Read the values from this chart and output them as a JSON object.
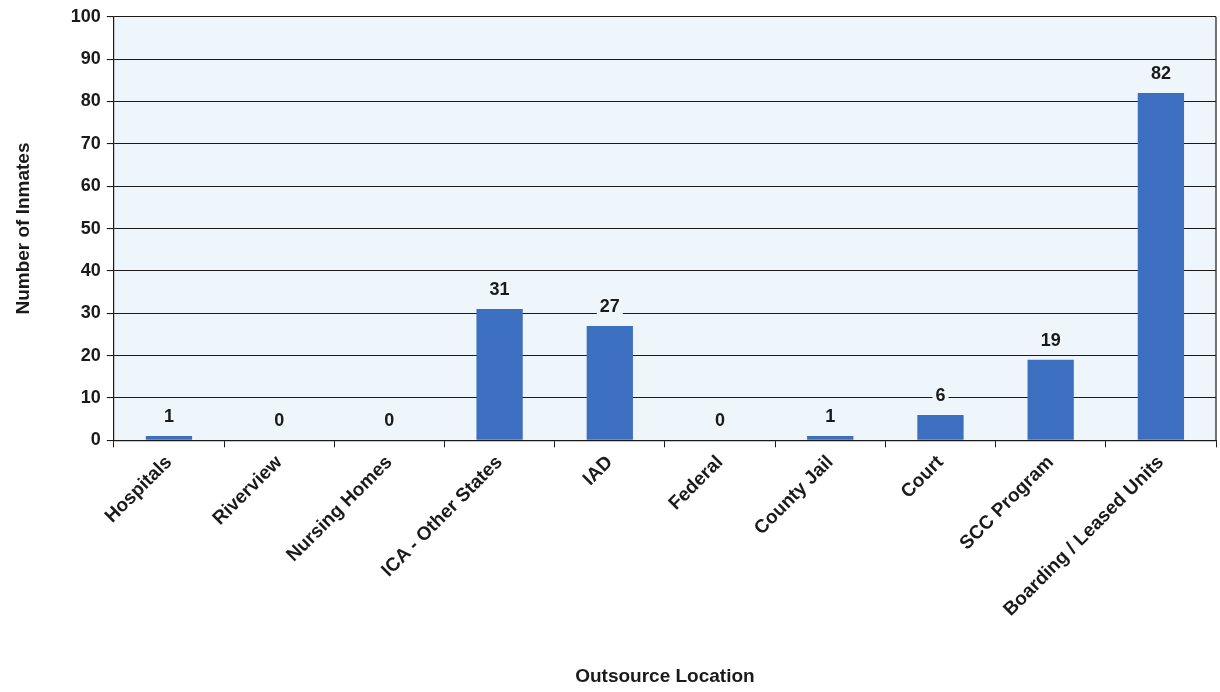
{
  "chart_data": {
    "type": "bar",
    "xlabel": "Outsource Location",
    "ylabel": "Number of Inmates",
    "categories": [
      "Hospitals",
      "Riverview",
      "Nursing Homes",
      "ICA - Other States",
      "IAD",
      "Federal",
      "County Jail",
      "Court",
      "SCC Program",
      "Boarding / Leased Units"
    ],
    "values": [
      1,
      0,
      0,
      31,
      27,
      0,
      1,
      6,
      19,
      82
    ],
    "color": "#3d6fc1",
    "ylim": [
      0,
      100
    ],
    "yticks": [
      0,
      10,
      20,
      30,
      40,
      50,
      60,
      70,
      80,
      90,
      100
    ],
    "grid": "y",
    "data_labels": true
  }
}
